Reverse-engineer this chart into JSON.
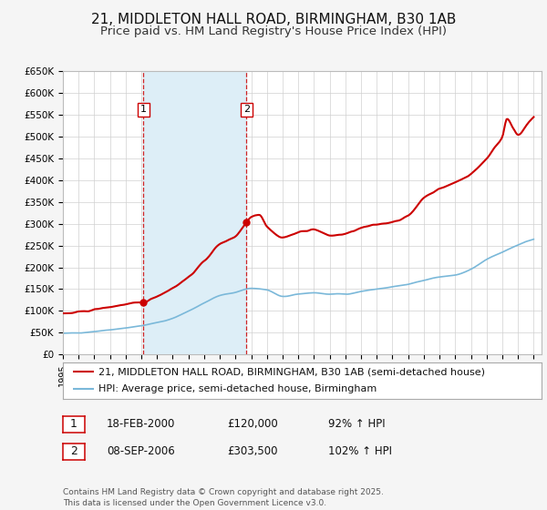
{
  "title": "21, MIDDLETON HALL ROAD, BIRMINGHAM, B30 1AB",
  "subtitle": "Price paid vs. HM Land Registry's House Price Index (HPI)",
  "ylim": [
    0,
    650000
  ],
  "yticks": [
    0,
    50000,
    100000,
    150000,
    200000,
    250000,
    300000,
    350000,
    400000,
    450000,
    500000,
    550000,
    600000,
    650000
  ],
  "ytick_labels": [
    "£0",
    "£50K",
    "£100K",
    "£150K",
    "£200K",
    "£250K",
    "£300K",
    "£350K",
    "£400K",
    "£450K",
    "£500K",
    "£550K",
    "£600K",
    "£650K"
  ],
  "hpi_color": "#7ab8d9",
  "price_color": "#cc0000",
  "vline_color": "#cc0000",
  "shade_color": "#ddeef7",
  "sale1_x": 2000.13,
  "sale1_y": 120000,
  "sale2_x": 2006.69,
  "sale2_y": 303500,
  "legend_label_price": "21, MIDDLETON HALL ROAD, BIRMINGHAM, B30 1AB (semi-detached house)",
  "legend_label_hpi": "HPI: Average price, semi-detached house, Birmingham",
  "table_row1": [
    "1",
    "18-FEB-2000",
    "£120,000",
    "92% ↑ HPI"
  ],
  "table_row2": [
    "2",
    "08-SEP-2006",
    "£303,500",
    "102% ↑ HPI"
  ],
  "footer": "Contains HM Land Registry data © Crown copyright and database right 2025.\nThis data is licensed under the Open Government Licence v3.0.",
  "background_color": "#f5f5f5",
  "plot_background": "#ffffff",
  "title_fontsize": 11,
  "subtitle_fontsize": 9.5,
  "tick_fontsize": 7.5,
  "legend_fontsize": 8,
  "table_fontsize": 8.5,
  "footer_fontsize": 6.5,
  "xlim_left": 1995,
  "xlim_right": 2025.5
}
